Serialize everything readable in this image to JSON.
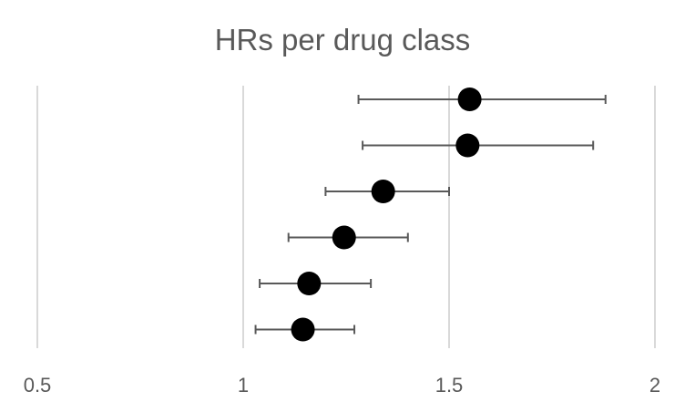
{
  "chart_data": {
    "type": "scatter",
    "title": "HRs per drug class",
    "xlabel": "",
    "ylabel": "",
    "xlim": [
      0.5,
      2
    ],
    "x_ticks": [
      "0.5",
      "1",
      "1.5",
      "2"
    ],
    "x_tick_values": [
      0.5,
      1,
      1.5,
      2
    ],
    "grid": true,
    "legend": "none",
    "error_bars": true,
    "point_color": "#000000",
    "errorbar_color": "#595959",
    "gridline_color": "#d9d9d9",
    "series": [
      {
        "points": [
          {
            "hr": 1.55,
            "lower": 1.28,
            "upper": 1.88
          },
          {
            "hr": 1.545,
            "lower": 1.29,
            "upper": 1.85
          },
          {
            "hr": 1.34,
            "lower": 1.2,
            "upper": 1.5
          },
          {
            "hr": 1.245,
            "lower": 1.11,
            "upper": 1.4
          },
          {
            "hr": 1.16,
            "lower": 1.04,
            "upper": 1.31
          },
          {
            "hr": 1.145,
            "lower": 1.03,
            "upper": 1.27
          }
        ]
      }
    ]
  }
}
